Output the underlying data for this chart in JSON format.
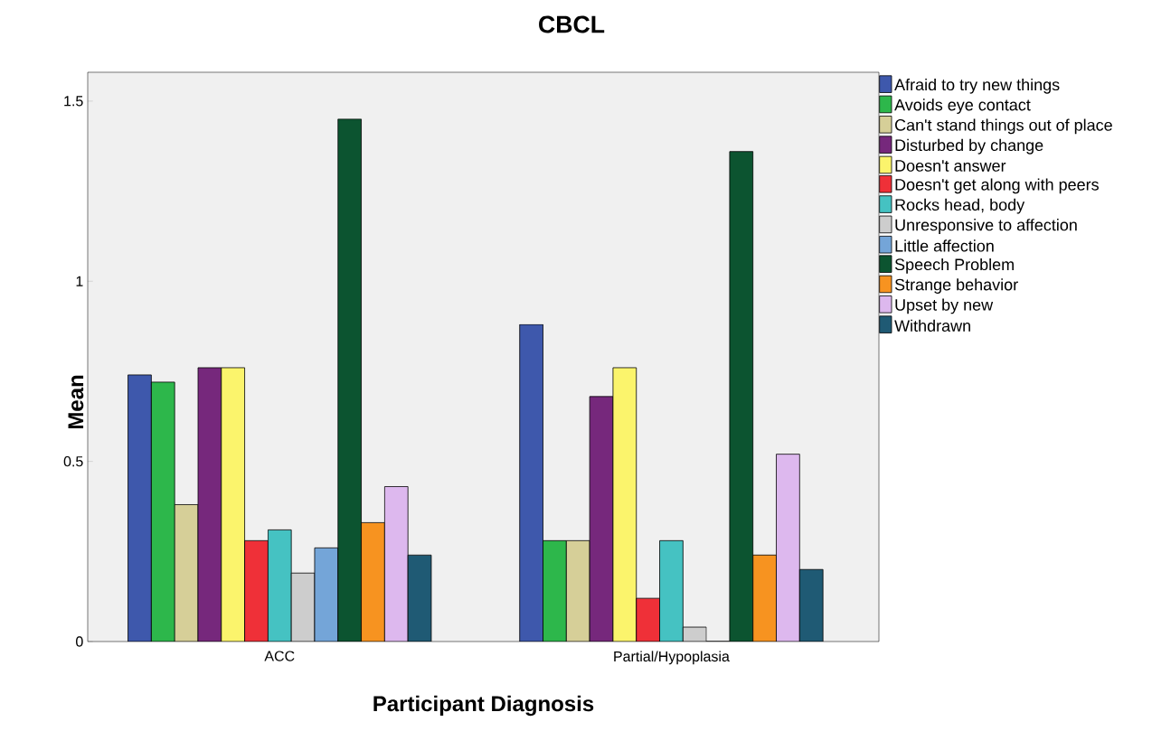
{
  "chart_data": {
    "type": "bar",
    "title": "CBCL",
    "xlabel": "Participant Diagnosis",
    "ylabel": "Mean",
    "categories": [
      "ACC",
      "Partial/Hypoplasia"
    ],
    "ylim": [
      0,
      1.58
    ],
    "yticks": [
      0,
      0.5,
      1,
      1.5
    ],
    "grid": false,
    "legend": "right",
    "series": [
      {
        "name": "Afraid to try new things",
        "color": "#3e58ac",
        "values": [
          0.74,
          0.88
        ]
      },
      {
        "name": "Avoids eye contact",
        "color": "#2db74b",
        "values": [
          0.72,
          0.28
        ]
      },
      {
        "name": "Can't stand things out of place",
        "color": "#d6cf98",
        "values": [
          0.38,
          0.28
        ]
      },
      {
        "name": "Disturbed by change",
        "color": "#76287c",
        "values": [
          0.76,
          0.68
        ]
      },
      {
        "name": "Doesn't answer",
        "color": "#fbf46c",
        "values": [
          0.76,
          0.76
        ]
      },
      {
        "name": "Doesn't get along with peers",
        "color": "#ef3038",
        "values": [
          0.28,
          0.12
        ]
      },
      {
        "name": "Rocks head, body",
        "color": "#45c2c2",
        "values": [
          0.31,
          0.28
        ]
      },
      {
        "name": "Unresponsive to affection",
        "color": "#cdcdcd",
        "values": [
          0.19,
          0.04
        ]
      },
      {
        "name": "Little affection",
        "color": "#74a5d8",
        "values": [
          0.26,
          0
        ]
      },
      {
        "name": "Speech Problem",
        "color": "#0c5430",
        "values": [
          1.45,
          1.36
        ]
      },
      {
        "name": "Strange behavior",
        "color": "#f79320",
        "values": [
          0.33,
          0.24
        ]
      },
      {
        "name": "Upset by new",
        "color": "#ddb8ee",
        "values": [
          0.43,
          0.52
        ]
      },
      {
        "name": "Withdrawn",
        "color": "#1f5a74",
        "values": [
          0.24,
          0.2
        ]
      }
    ]
  }
}
